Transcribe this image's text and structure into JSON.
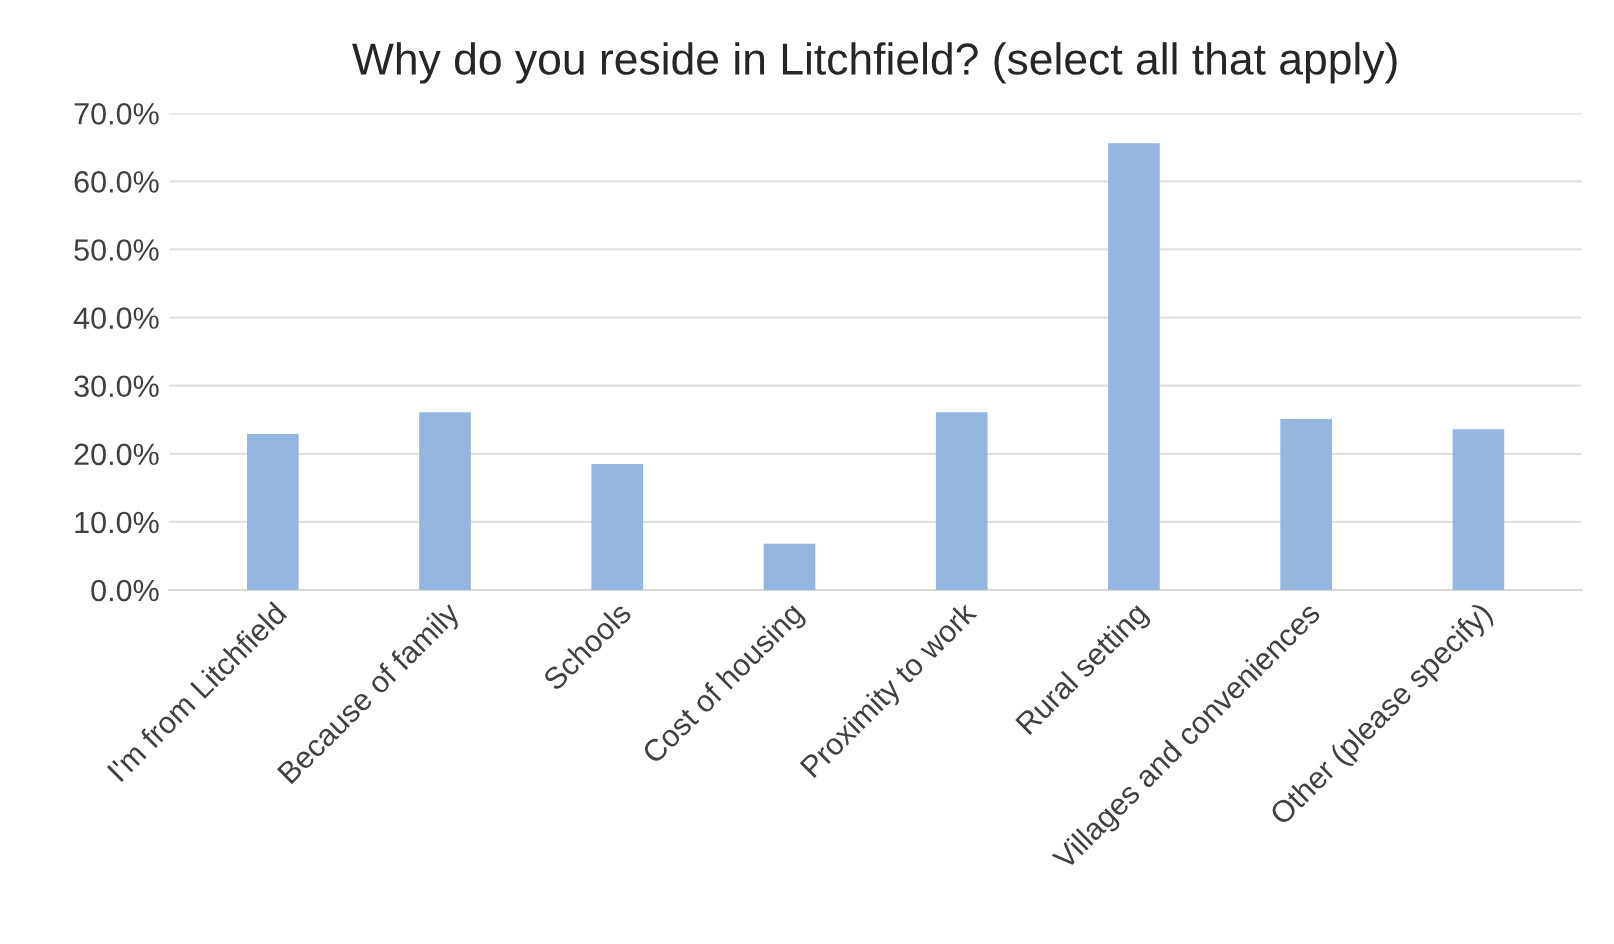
{
  "chart_data": {
    "type": "bar",
    "title": "Why do you reside in Litchfield? (select all that apply)",
    "categories": [
      "I'm from Litchfield",
      "Because of family",
      "Schools",
      "Cost of housing",
      "Proximity to work",
      "Rural setting",
      "Villages and conveniences",
      "Other (please specify)"
    ],
    "values": [
      22.9,
      26.1,
      18.5,
      6.8,
      26.1,
      65.6,
      25.1,
      23.6
    ],
    "color": "#95b6df",
    "ylim": [
      0,
      70
    ],
    "yticks": [
      {
        "value": 0,
        "label": "0.0%"
      },
      {
        "value": 10,
        "label": "10.0%"
      },
      {
        "value": 20,
        "label": "20.0%"
      },
      {
        "value": 30,
        "label": "30.0%"
      },
      {
        "value": 40,
        "label": "40.0%"
      },
      {
        "value": 50,
        "label": "50.0%"
      },
      {
        "value": 60,
        "label": "60.0%"
      },
      {
        "value": 70,
        "label": "70.0%"
      }
    ],
    "grid": "y"
  }
}
